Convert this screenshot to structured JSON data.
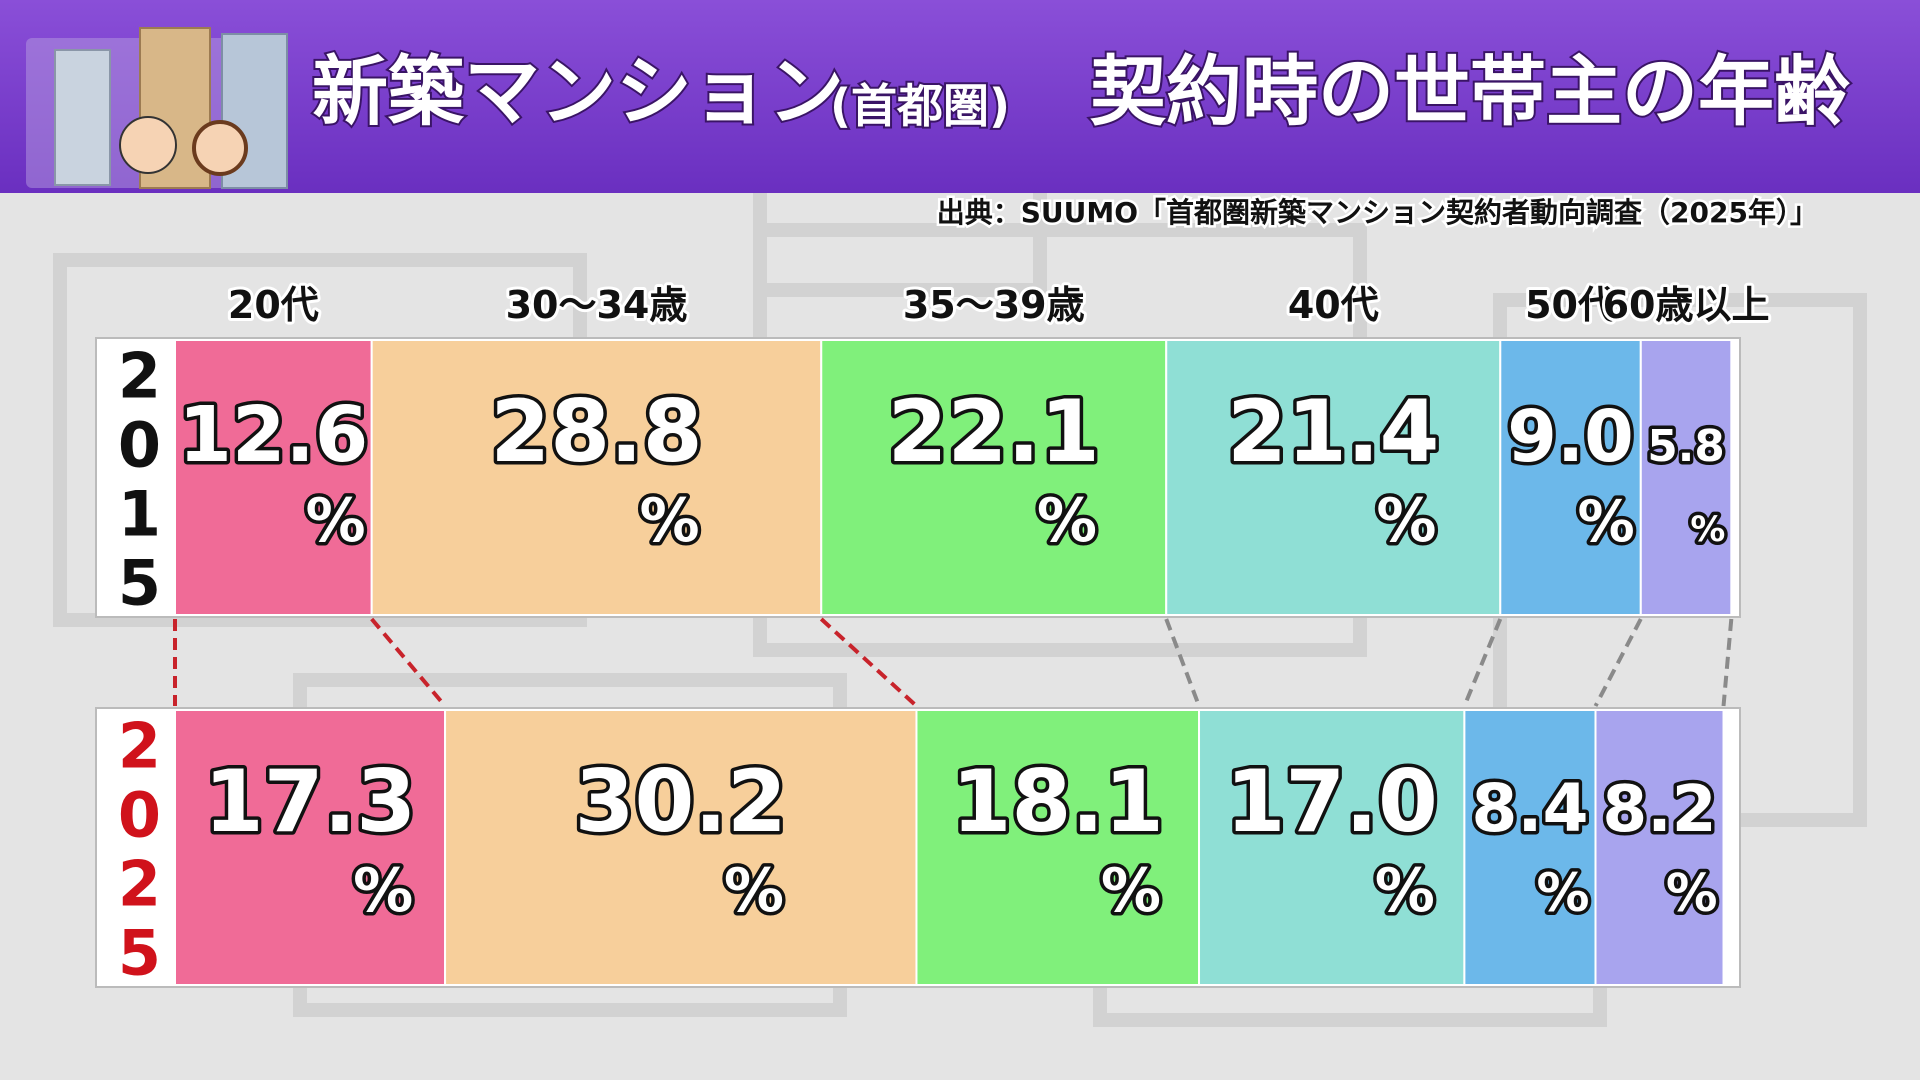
{
  "chart_data": {
    "type": "stacked_bar_horizontal",
    "title": "新築マンション",
    "title_note": "(首都圏)",
    "subtitle": "契約時の世帯主の年齢",
    "source": "出典：SUUMO「首都圏新築マンション契約者動向調査（2025年）」",
    "categories": [
      "2015",
      "2025"
    ],
    "category_colors": [
      "#111111",
      "#d0121b"
    ],
    "value_suffix": "%",
    "xlim": [
      0,
      100
    ],
    "series": [
      {
        "name": "20代",
        "color": "#f06b97",
        "values": [
          12.6,
          17.3
        ],
        "value_labels": [
          "12.6",
          "17.3"
        ]
      },
      {
        "name": "30～34歳",
        "color": "#f7cf9b",
        "values": [
          28.8,
          30.2
        ],
        "value_labels": [
          "28.8",
          "30.2"
        ]
      },
      {
        "name": "35～39歳",
        "color": "#80f07b",
        "values": [
          22.1,
          18.1
        ],
        "value_labels": [
          "22.1",
          "18.1"
        ]
      },
      {
        "name": "40代",
        "color": "#8fdfd5",
        "values": [
          21.4,
          17.0
        ],
        "value_labels": [
          "21.4",
          "17.0"
        ]
      },
      {
        "name": "50代",
        "color": "#6cb8ea",
        "values": [
          9.0,
          8.4
        ],
        "value_labels": [
          "9.0",
          "8.4"
        ]
      },
      {
        "name": "60歳以上",
        "color": "#a8a4ee",
        "values": [
          5.8,
          8.2
        ],
        "value_labels": [
          "5.8",
          "8.2"
        ]
      }
    ]
  }
}
